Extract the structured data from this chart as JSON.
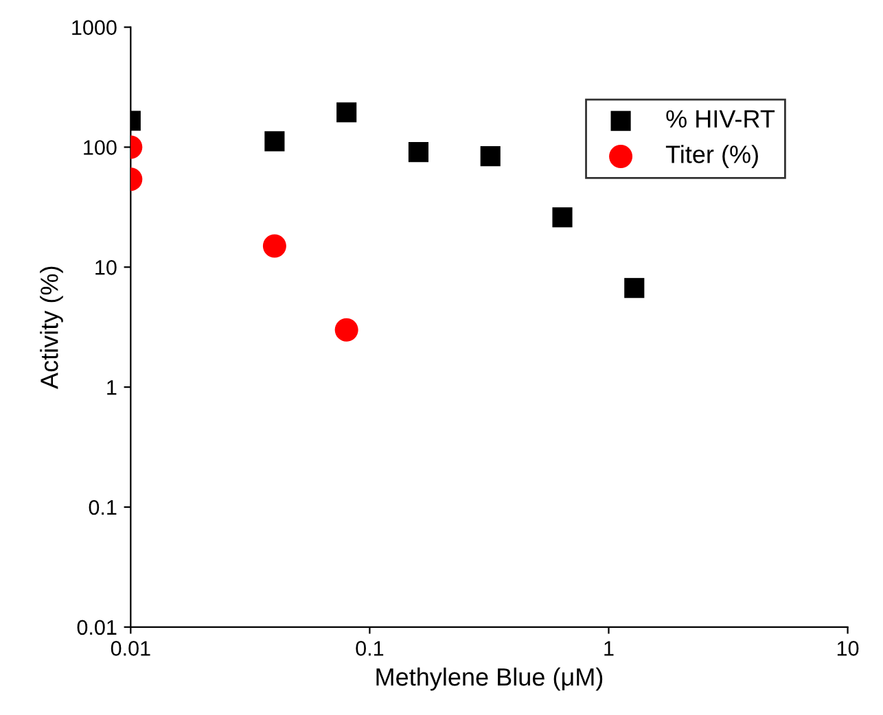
{
  "chart_data": {
    "type": "scatter",
    "xlabel": "Methylene Blue (μM)",
    "ylabel": "Activity (%)",
    "log": "xy",
    "xlim": [
      0.01,
      10
    ],
    "ylim": [
      0.01,
      1000
    ],
    "xticks": [
      0.01,
      0.1,
      1,
      10
    ],
    "yticks": [
      0.01,
      0.1,
      1,
      10,
      100,
      1000
    ],
    "grid": false,
    "legend": "top right",
    "series": [
      {
        "name": "% HIV-RT",
        "color": "#000000",
        "marker": "square",
        "x": [
          0.01,
          0.04,
          0.08,
          0.16,
          0.32,
          0.64,
          1.28
        ],
        "values": [
          166,
          112,
          195,
          91,
          84,
          26,
          6.7
        ]
      },
      {
        "name": "Titer (%)",
        "color": "#ff0000",
        "marker": "circle",
        "x": [
          0.01,
          0.01,
          0.04,
          0.08
        ],
        "values": [
          100,
          54,
          15,
          3.0
        ]
      }
    ]
  }
}
